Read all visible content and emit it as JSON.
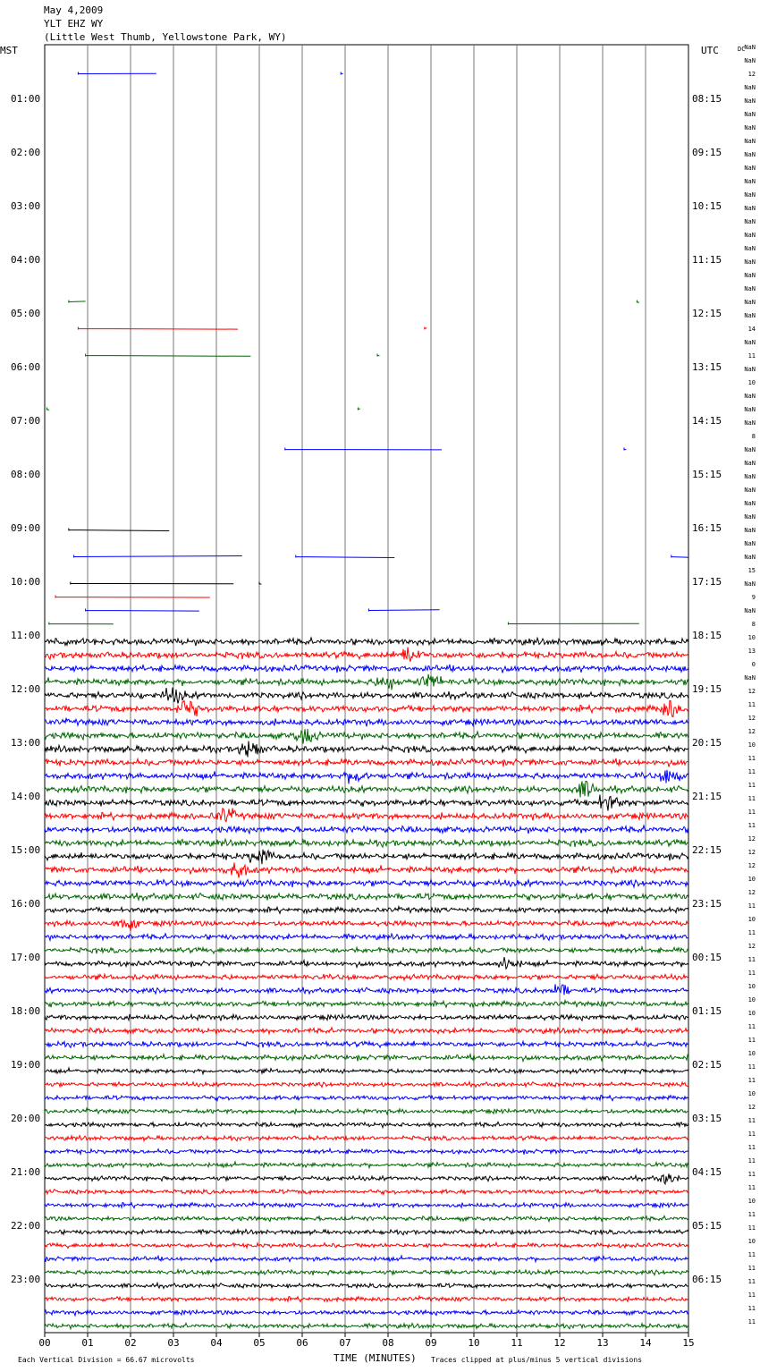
{
  "header": {
    "date": "May 4,2009",
    "station": "YLT EHZ WY",
    "location": "(Little West Thumb, Yellowstone Park, WY)"
  },
  "chart_data": {
    "type": "line",
    "title": "",
    "left_zone_label": "MST",
    "right_zone_label": "UTC",
    "dc_column_label": "DC",
    "left_hour_labels": [
      "01:00",
      "02:00",
      "03:00",
      "04:00",
      "05:00",
      "06:00",
      "07:00",
      "08:00",
      "09:00",
      "10:00",
      "11:00",
      "12:00",
      "13:00",
      "14:00",
      "15:00",
      "16:00",
      "17:00",
      "18:00",
      "19:00",
      "20:00",
      "21:00",
      "22:00",
      "23:00"
    ],
    "right_hour_labels": [
      "08:15",
      "09:15",
      "10:15",
      "11:15",
      "12:15",
      "13:15",
      "14:15",
      "15:15",
      "16:15",
      "17:15",
      "18:15",
      "19:15",
      "20:15",
      "21:15",
      "22:15",
      "23:15",
      "00:15",
      "01:15",
      "02:15",
      "03:15",
      "04:15",
      "05:15",
      "06:15"
    ],
    "x_tick_labels": [
      "00",
      "01",
      "02",
      "03",
      "04",
      "05",
      "06",
      "07",
      "08",
      "09",
      "10",
      "11",
      "12",
      "13",
      "14",
      "15"
    ],
    "xlim": [
      0,
      15
    ],
    "xlabel": "TIME (MINUTES)",
    "rows_per_hour": 4,
    "row_count": 96,
    "trace_color_cycle": [
      "#000000",
      "#ff0000",
      "#0000ff",
      "#006600"
    ],
    "dc_offsets": [
      "NaN",
      "NaN",
      "12",
      "NaN",
      "NaN",
      "NaN",
      "NaN",
      "NaN",
      "NaN",
      "NaN",
      "NaN",
      "NaN",
      "NaN",
      "NaN",
      "NaN",
      "NaN",
      "NaN",
      "NaN",
      "NaN",
      "NaN",
      "NaN",
      "14",
      "NaN",
      "11",
      "NaN",
      "10",
      "NaN",
      "NaN",
      "NaN",
      "8",
      "NaN",
      "NaN",
      "NaN",
      "NaN",
      "NaN",
      "NaN",
      "NaN",
      "NaN",
      "NaN",
      "15",
      "NaN",
      "9",
      "NaN",
      "8",
      "10",
      "13",
      "0",
      "NaN",
      "12",
      "11",
      "12",
      "12",
      "10",
      "11",
      "11",
      "11",
      "11",
      "11",
      "11",
      "12",
      "12",
      "12",
      "10",
      "12",
      "11",
      "10",
      "11",
      "12",
      "11",
      "11",
      "10",
      "10",
      "10",
      "11",
      "11",
      "10",
      "11",
      "11",
      "10",
      "12",
      "11",
      "11",
      "11",
      "11",
      "11",
      "11",
      "10",
      "11",
      "11",
      "10",
      "11",
      "11",
      "11",
      "11",
      "11",
      "11"
    ],
    "flat_segments": [
      {
        "row": 2,
        "start": 0.78,
        "end": 2.6
      },
      {
        "row": 2,
        "start": 6.9,
        "end": 6.95
      },
      {
        "row": 19,
        "start": 0.56,
        "end": 0.95
      },
      {
        "row": 19,
        "start": 13.8,
        "end": 13.85
      },
      {
        "row": 21,
        "start": 0.78,
        "end": 4.5
      },
      {
        "row": 21,
        "start": 8.85,
        "end": 8.9
      },
      {
        "row": 23,
        "start": 0.95,
        "end": 4.8
      },
      {
        "row": 23,
        "start": 7.75,
        "end": 7.8
      },
      {
        "row": 27,
        "start": 0.05,
        "end": 0.1
      },
      {
        "row": 27,
        "start": 7.3,
        "end": 7.35
      },
      {
        "row": 30,
        "start": 5.6,
        "end": 9.25
      },
      {
        "row": 30,
        "start": 13.5,
        "end": 13.55
      },
      {
        "row": 36,
        "start": 0.56,
        "end": 2.9
      },
      {
        "row": 38,
        "start": 0.68,
        "end": 4.6
      },
      {
        "row": 38,
        "start": 5.85,
        "end": 8.15
      },
      {
        "row": 38,
        "start": 14.6,
        "end": 15.0
      },
      {
        "row": 40,
        "start": 0.6,
        "end": 4.4
      },
      {
        "row": 40,
        "start": 5.0,
        "end": 5.05
      },
      {
        "row": 41,
        "start": 0.25,
        "end": 3.85
      },
      {
        "row": 42,
        "start": 0.95,
        "end": 3.6
      },
      {
        "row": 42,
        "start": 7.55,
        "end": 9.2
      },
      {
        "row": 43,
        "start": 0.1,
        "end": 1.6
      },
      {
        "row": 43,
        "start": 10.8,
        "end": 13.85
      }
    ],
    "noise_start_row": 44,
    "events": [
      {
        "row": 45,
        "minute": 8.5,
        "size": 1.8
      },
      {
        "row": 47,
        "minute": 8.0,
        "size": 1.6
      },
      {
        "row": 47,
        "minute": 9.0,
        "size": 1.8
      },
      {
        "row": 48,
        "minute": 3.0,
        "size": 1.6
      },
      {
        "row": 49,
        "minute": 3.3,
        "size": 2.0
      },
      {
        "row": 49,
        "minute": 14.6,
        "size": 2.0
      },
      {
        "row": 51,
        "minute": 6.1,
        "size": 1.8
      },
      {
        "row": 52,
        "minute": 4.8,
        "size": 2.0
      },
      {
        "row": 54,
        "minute": 7.3,
        "size": 1.8
      },
      {
        "row": 54,
        "minute": 14.6,
        "size": 1.6
      },
      {
        "row": 55,
        "minute": 12.6,
        "size": 1.8
      },
      {
        "row": 56,
        "minute": 13.1,
        "size": 2.0
      },
      {
        "row": 57,
        "minute": 4.2,
        "size": 1.5
      },
      {
        "row": 60,
        "minute": 5.0,
        "size": 1.8
      },
      {
        "row": 61,
        "minute": 4.5,
        "size": 1.5
      },
      {
        "row": 65,
        "minute": 1.9,
        "size": 1.8
      },
      {
        "row": 68,
        "minute": 10.8,
        "size": 1.6
      },
      {
        "row": 70,
        "minute": 12.0,
        "size": 1.5
      },
      {
        "row": 84,
        "minute": 14.5,
        "size": 1.4
      }
    ],
    "footer_left": "Each Vertical Division =   66.67 microvolts",
    "footer_right": "Traces clipped at plus/minus 5 vertical divisions"
  }
}
